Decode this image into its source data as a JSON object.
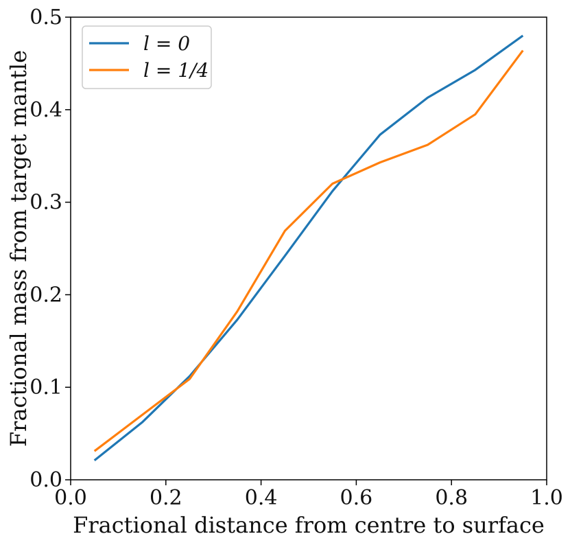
{
  "chart_data": {
    "type": "line",
    "title": "",
    "xlabel": "Fractional distance from centre to surface",
    "ylabel": "Fractional mass from target mantle",
    "xlim": [
      0.0,
      1.0
    ],
    "ylim": [
      0.0,
      0.5
    ],
    "xticks": [
      "0.0",
      "0.2",
      "0.4",
      "0.6",
      "0.8",
      "1.0"
    ],
    "yticks": [
      "0.0",
      "0.1",
      "0.2",
      "0.3",
      "0.4",
      "0.5"
    ],
    "grid": false,
    "legend_position": "top-left",
    "x": [
      0.05,
      0.15,
      0.25,
      0.35,
      0.45,
      0.55,
      0.65,
      0.75,
      0.85,
      0.95
    ],
    "series": [
      {
        "name": "l = 0",
        "color": "#1f77b4",
        "values": [
          0.021,
          0.062,
          0.112,
          0.173,
          0.242,
          0.312,
          0.373,
          0.413,
          0.443,
          0.48
        ]
      },
      {
        "name": "l = 1/4",
        "color": "#ff7f0e",
        "values": [
          0.031,
          0.07,
          0.109,
          0.182,
          0.269,
          0.32,
          0.343,
          0.362,
          0.395,
          0.464
        ]
      }
    ]
  }
}
